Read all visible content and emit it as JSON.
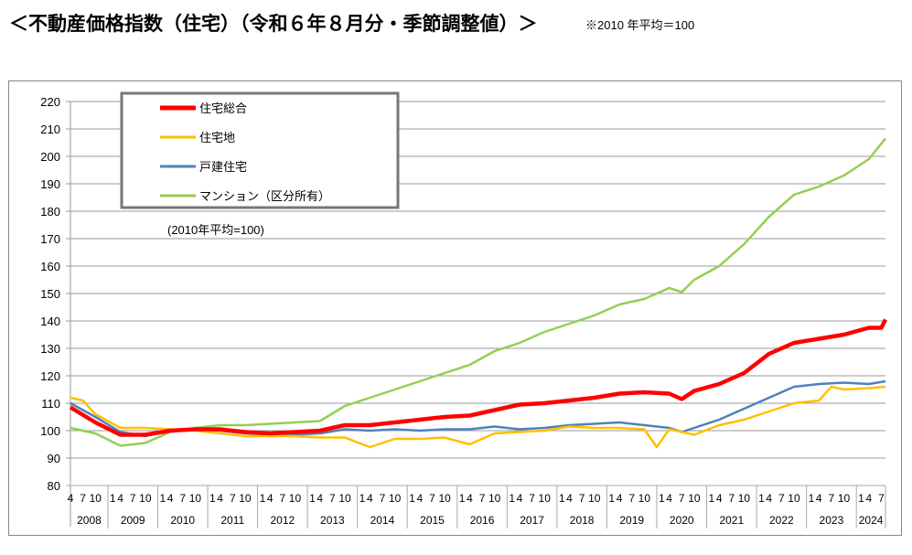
{
  "title": "＜不動産価格指数（住宅）（令和６年８月分・季節調整値）＞",
  "note": "※2010 年平均＝100",
  "chart_data": {
    "type": "line",
    "annotation": "(2010年平均=100)",
    "ylim": [
      80,
      220
    ],
    "yticks": [
      80,
      90,
      100,
      110,
      120,
      130,
      140,
      150,
      160,
      170,
      180,
      190,
      200,
      210,
      220
    ],
    "grid": true,
    "legend_position": "top-left",
    "x_range": [
      "2008-04",
      "2024-08"
    ],
    "month_ticks": [
      "1",
      "4",
      "7",
      "10"
    ],
    "years": [
      "2008",
      "2009",
      "2010",
      "2011",
      "2012",
      "2013",
      "2014",
      "2015",
      "2016",
      "2017",
      "2018",
      "2019",
      "2020",
      "2021",
      "2022",
      "2023",
      "2024"
    ],
    "series": [
      {
        "name": "住宅総合",
        "color": "#ff0000",
        "points": [
          [
            "2008-04",
            108.5
          ],
          [
            "2008-10",
            103
          ],
          [
            "2009-04",
            98.5
          ],
          [
            "2009-10",
            98.5
          ],
          [
            "2010-04",
            100
          ],
          [
            "2010-10",
            100.5
          ],
          [
            "2011-04",
            100.5
          ],
          [
            "2011-10",
            99.5
          ],
          [
            "2012-04",
            99
          ],
          [
            "2012-10",
            99.5
          ],
          [
            "2013-04",
            100
          ],
          [
            "2013-10",
            102
          ],
          [
            "2014-04",
            102
          ],
          [
            "2014-10",
            103
          ],
          [
            "2015-04",
            104
          ],
          [
            "2015-10",
            105
          ],
          [
            "2016-04",
            105.5
          ],
          [
            "2016-10",
            107.5
          ],
          [
            "2017-04",
            109.5
          ],
          [
            "2017-10",
            110
          ],
          [
            "2018-04",
            111
          ],
          [
            "2018-10",
            112
          ],
          [
            "2019-04",
            113.5
          ],
          [
            "2019-10",
            114
          ],
          [
            "2020-04",
            113.5
          ],
          [
            "2020-07",
            111.5
          ],
          [
            "2020-10",
            114.5
          ],
          [
            "2021-04",
            117
          ],
          [
            "2021-10",
            121
          ],
          [
            "2022-04",
            128
          ],
          [
            "2022-10",
            132
          ],
          [
            "2023-04",
            133.5
          ],
          [
            "2023-10",
            135
          ],
          [
            "2024-04",
            137.5
          ],
          [
            "2024-07",
            137.5
          ],
          [
            "2024-08",
            140.5
          ]
        ]
      },
      {
        "name": "住宅地",
        "color": "#ffc000",
        "points": [
          [
            "2008-04",
            112
          ],
          [
            "2008-07",
            111
          ],
          [
            "2008-10",
            106
          ],
          [
            "2009-04",
            101
          ],
          [
            "2009-10",
            101
          ],
          [
            "2010-04",
            100.5
          ],
          [
            "2010-10",
            100
          ],
          [
            "2011-04",
            99
          ],
          [
            "2011-10",
            98
          ],
          [
            "2012-04",
            98
          ],
          [
            "2012-10",
            98
          ],
          [
            "2013-04",
            97.5
          ],
          [
            "2013-10",
            97.5
          ],
          [
            "2014-04",
            94
          ],
          [
            "2014-10",
            97
          ],
          [
            "2015-04",
            97
          ],
          [
            "2015-10",
            97.5
          ],
          [
            "2016-04",
            95
          ],
          [
            "2016-10",
            99
          ],
          [
            "2017-04",
            99.5
          ],
          [
            "2017-10",
            100
          ],
          [
            "2018-04",
            101.5
          ],
          [
            "2018-10",
            101
          ],
          [
            "2019-04",
            101
          ],
          [
            "2019-10",
            100.5
          ],
          [
            "2020-01",
            94
          ],
          [
            "2020-04",
            100.5
          ],
          [
            "2020-10",
            98.5
          ],
          [
            "2021-04",
            102
          ],
          [
            "2021-10",
            104
          ],
          [
            "2022-04",
            107
          ],
          [
            "2022-10",
            110
          ],
          [
            "2023-04",
            111
          ],
          [
            "2023-07",
            116
          ],
          [
            "2023-10",
            115
          ],
          [
            "2024-04",
            115.5
          ],
          [
            "2024-08",
            116
          ]
        ]
      },
      {
        "name": "戸建住宅",
        "color": "#4f81bd",
        "points": [
          [
            "2008-04",
            110
          ],
          [
            "2008-10",
            105
          ],
          [
            "2009-04",
            99.5
          ],
          [
            "2009-10",
            98
          ],
          [
            "2010-04",
            100
          ],
          [
            "2010-10",
            100.5
          ],
          [
            "2011-04",
            100
          ],
          [
            "2011-10",
            99
          ],
          [
            "2012-04",
            98.5
          ],
          [
            "2012-10",
            98.5
          ],
          [
            "2013-04",
            99
          ],
          [
            "2013-10",
            100.5
          ],
          [
            "2014-04",
            100
          ],
          [
            "2014-10",
            100.5
          ],
          [
            "2015-04",
            100
          ],
          [
            "2015-10",
            100.5
          ],
          [
            "2016-04",
            100.5
          ],
          [
            "2016-10",
            101.5
          ],
          [
            "2017-04",
            100.5
          ],
          [
            "2017-10",
            101
          ],
          [
            "2018-04",
            102
          ],
          [
            "2018-10",
            102.5
          ],
          [
            "2019-04",
            103
          ],
          [
            "2019-10",
            102
          ],
          [
            "2020-04",
            101
          ],
          [
            "2020-07",
            99.5
          ],
          [
            "2020-10",
            101
          ],
          [
            "2021-04",
            104
          ],
          [
            "2021-10",
            108
          ],
          [
            "2022-04",
            112
          ],
          [
            "2022-10",
            116
          ],
          [
            "2023-04",
            117
          ],
          [
            "2023-10",
            117.5
          ],
          [
            "2024-04",
            117
          ],
          [
            "2024-08",
            118
          ]
        ]
      },
      {
        "name": "マンション（区分所有）",
        "color": "#92d050",
        "points": [
          [
            "2008-04",
            101
          ],
          [
            "2008-10",
            99
          ],
          [
            "2009-04",
            94.5
          ],
          [
            "2009-10",
            95.5
          ],
          [
            "2010-04",
            99.5
          ],
          [
            "2010-10",
            101
          ],
          [
            "2011-04",
            102
          ],
          [
            "2011-10",
            102
          ],
          [
            "2012-04",
            102.5
          ],
          [
            "2012-10",
            103
          ],
          [
            "2013-04",
            103.5
          ],
          [
            "2013-10",
            109
          ],
          [
            "2014-04",
            112
          ],
          [
            "2014-10",
            115
          ],
          [
            "2015-04",
            118
          ],
          [
            "2015-10",
            121
          ],
          [
            "2016-04",
            124
          ],
          [
            "2016-10",
            129
          ],
          [
            "2017-04",
            132
          ],
          [
            "2017-10",
            136
          ],
          [
            "2018-04",
            139
          ],
          [
            "2018-10",
            142
          ],
          [
            "2019-04",
            146
          ],
          [
            "2019-10",
            148
          ],
          [
            "2020-04",
            152
          ],
          [
            "2020-07",
            150.5
          ],
          [
            "2020-10",
            155
          ],
          [
            "2021-04",
            160
          ],
          [
            "2021-10",
            168
          ],
          [
            "2022-04",
            178
          ],
          [
            "2022-10",
            186
          ],
          [
            "2023-04",
            189
          ],
          [
            "2023-10",
            193
          ],
          [
            "2024-04",
            199
          ],
          [
            "2024-08",
            206.5
          ]
        ]
      }
    ]
  }
}
